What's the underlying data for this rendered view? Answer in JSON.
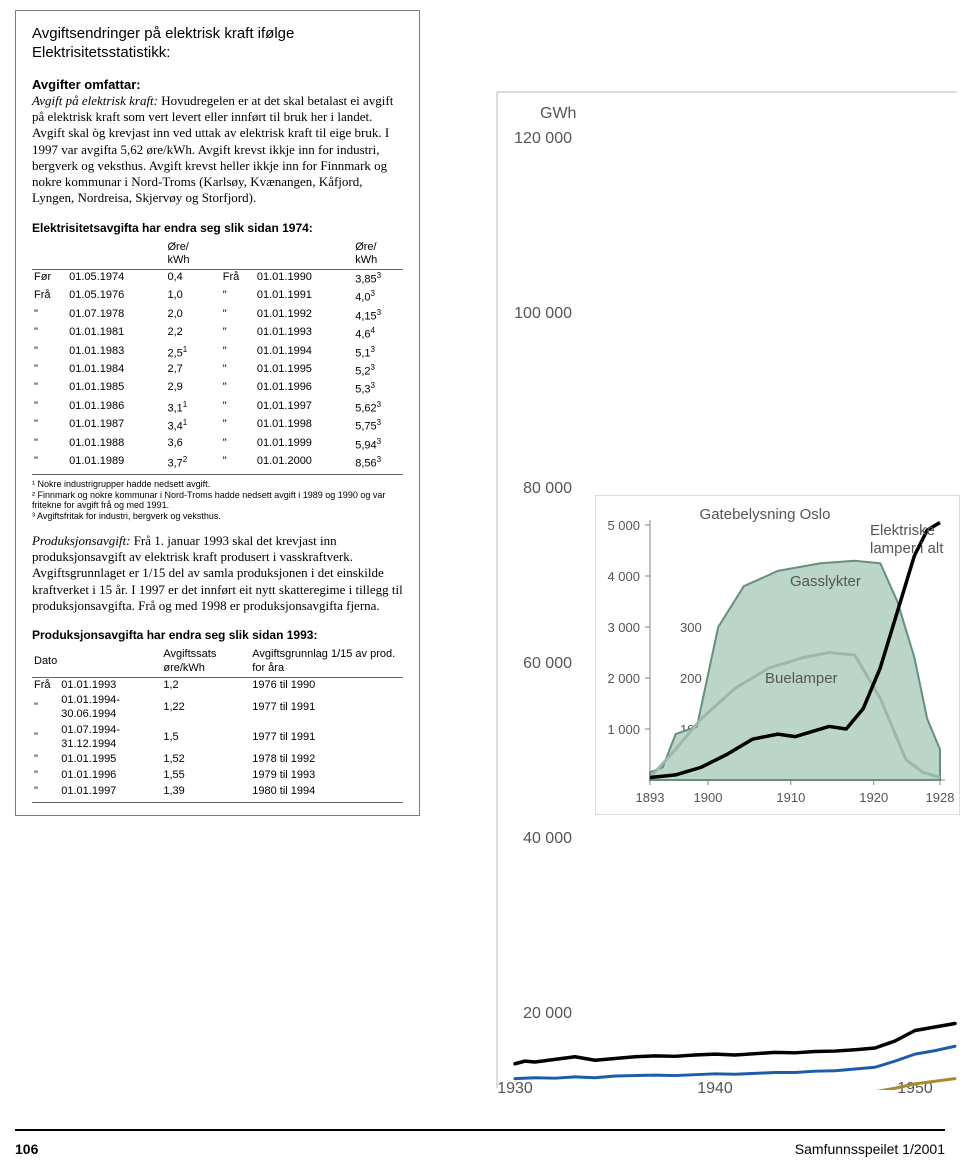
{
  "box": {
    "title": "Avgiftsendringer på elektrisk kraft ifølge Elektrisitetsstatistikk:",
    "section1_head": "Avgifter omfattar:",
    "section1_lead": "Avgift på elektrisk kraft:",
    "section1_body": "Hovudregelen er at det skal betalast ei avgift på elektrisk kraft som vert levert eller innført til bruk her i landet. Avgift skal òg krevjast inn ved uttak av elektrisk kraft til eige bruk. I 1997 var avgifta 5,62 øre/kWh. Avgift krevst ikkje inn for industri, bergverk og veksthus. Avgift krevst heller ikkje inn for Finnmark og nokre kommunar i Nord-Troms (Karlsøy, Kvænangen, Kåfjord, Lyngen, Nordreisa, Skjervøy og Storfjord).",
    "sub1": "Elektrisitetsavgifta har endra seg slik sidan 1974:",
    "tariff_unit": "Øre/\nkWh",
    "tariff_left": [
      [
        "Før",
        "01.05.1974",
        "0,4",
        ""
      ],
      [
        "Frå",
        "01.05.1976",
        "1,0",
        ""
      ],
      [
        "\"",
        "01.07.1978",
        "2,0",
        ""
      ],
      [
        "\"",
        "01.01.1981",
        "2,2",
        ""
      ],
      [
        "\"",
        "01.01.1983",
        "2,5",
        "1"
      ],
      [
        "\"",
        "01.01.1984",
        "2,7",
        ""
      ],
      [
        "\"",
        "01.01.1985",
        "2,9",
        ""
      ],
      [
        "\"",
        "01.01.1986",
        "3,1",
        "1"
      ],
      [
        "\"",
        "01.01.1987",
        "3,4",
        "1"
      ],
      [
        "\"",
        "01.01.1988",
        "3,6",
        ""
      ],
      [
        "\"",
        "01.01.1989",
        "3,7",
        "2"
      ]
    ],
    "tariff_right": [
      [
        "Frå",
        "01.01.1990",
        "3,85",
        "3"
      ],
      [
        "\"",
        "01.01.1991",
        "4,0",
        "3"
      ],
      [
        "\"",
        "01.01.1992",
        "4,15",
        "3"
      ],
      [
        "\"",
        "01.01.1993",
        "4,6",
        "4"
      ],
      [
        "\"",
        "01.01.1994",
        "5,1",
        "3"
      ],
      [
        "\"",
        "01.01.1995",
        "5,2",
        "3"
      ],
      [
        "\"",
        "01.01.1996",
        "5,3",
        "3"
      ],
      [
        "\"",
        "01.01.1997",
        "5,62",
        "3"
      ],
      [
        "\"",
        "01.01.1998",
        "5,75",
        "3"
      ],
      [
        "\"",
        "01.01.1999",
        "5,94",
        "3"
      ],
      [
        "\"",
        "01.01.2000",
        "8,56",
        "3"
      ]
    ],
    "footnotes": [
      "¹ Nokre industrigrupper hadde nedsett avgift.",
      "² Finnmark og nokre kommunar i Nord-Troms hadde nedsett avgift i 1989 og 1990 og var fritekne for avgift frå og med 1991.",
      "³ Avgiftsfritak for industri, bergverk og veksthus."
    ],
    "section2_lead": "Produksjonsavgift:",
    "section2_body": "Frå 1. januar 1993 skal det krevjast inn produksjonsavgift av elektrisk kraft produsert i vasskraftverk. Avgiftsgrunnlaget er 1/15 del av samla produksjonen i det einskilde kraftverket i 15 år. I 1997 er det innført eit nytt skatteregime i tillegg til produksjonsavgifta. Frå og med 1998 er produksjonsavgifta fjerna.",
    "sub2": "Produksjonsavgifta har endra seg slik sidan 1993:",
    "prod_headers": [
      "Dato",
      "Avgiftssats øre/kWh",
      "Avgiftsgrunnlag 1/15 av prod. for åra"
    ],
    "prod_rows": [
      [
        "Frå",
        "01.01.1993",
        "1,2",
        "1976 til 1990"
      ],
      [
        "\"",
        "01.01.1994-30.06.1994",
        "1,22",
        "1977 til 1991"
      ],
      [
        "\"",
        "01.07.1994-31.12.1994",
        "1,5",
        "1977 til 1991"
      ],
      [
        "\"",
        "01.01.1995",
        "1,52",
        "1978 til 1992"
      ],
      [
        "\"",
        "01.01.1996",
        "1,55",
        "1979 til 1993"
      ],
      [
        "\"",
        "01.01.1997",
        "1,39",
        "1980 til 1994"
      ]
    ]
  },
  "main_chart": {
    "unit": "GWh",
    "y_ticks": [
      "120 000",
      "100 000",
      "80 000",
      "60 000",
      "40 000",
      "20 000"
    ],
    "x_ticks": [
      "1930",
      "1940",
      "1950"
    ],
    "colors": {
      "black_line": "#000000",
      "blue_line": "#1c5da8",
      "gold_line": "#a68a2d",
      "axis": "#808080"
    },
    "series_black": [
      [
        0,
        14200
      ],
      [
        10,
        14500
      ],
      [
        20,
        14400
      ],
      [
        40,
        14700
      ],
      [
        60,
        15000
      ],
      [
        80,
        14600
      ],
      [
        100,
        14800
      ],
      [
        120,
        15000
      ],
      [
        140,
        15100
      ],
      [
        160,
        15050
      ],
      [
        180,
        15200
      ],
      [
        200,
        15300
      ],
      [
        220,
        15200
      ],
      [
        240,
        15350
      ],
      [
        260,
        15500
      ],
      [
        280,
        15450
      ],
      [
        300,
        15600
      ],
      [
        320,
        15650
      ],
      [
        340,
        15800
      ],
      [
        360,
        16000
      ],
      [
        380,
        16800
      ],
      [
        400,
        18000
      ],
      [
        420,
        18400
      ],
      [
        440,
        18800
      ]
    ],
    "series_blue": [
      [
        0,
        12500
      ],
      [
        20,
        12600
      ],
      [
        40,
        12550
      ],
      [
        60,
        12700
      ],
      [
        80,
        12600
      ],
      [
        100,
        12800
      ],
      [
        120,
        12850
      ],
      [
        140,
        12900
      ],
      [
        160,
        12850
      ],
      [
        180,
        12950
      ],
      [
        200,
        13050
      ],
      [
        220,
        13000
      ],
      [
        240,
        13100
      ],
      [
        260,
        13200
      ],
      [
        280,
        13200
      ],
      [
        300,
        13350
      ],
      [
        320,
        13400
      ],
      [
        340,
        13600
      ],
      [
        360,
        13800
      ],
      [
        380,
        14500
      ],
      [
        400,
        15300
      ],
      [
        420,
        15700
      ],
      [
        440,
        16200
      ]
    ],
    "series_gold": [
      [
        0,
        10300
      ],
      [
        20,
        10350
      ],
      [
        40,
        10320
      ],
      [
        60,
        10400
      ],
      [
        80,
        10380
      ],
      [
        100,
        10450
      ],
      [
        120,
        10500
      ],
      [
        140,
        10520
      ],
      [
        160,
        10500
      ],
      [
        180,
        10550
      ],
      [
        200,
        10600
      ],
      [
        220,
        10580
      ],
      [
        240,
        10620
      ],
      [
        260,
        10680
      ],
      [
        280,
        10700
      ],
      [
        300,
        10750
      ],
      [
        320,
        10800
      ],
      [
        340,
        10900
      ],
      [
        360,
        11000
      ],
      [
        380,
        11400
      ],
      [
        400,
        11900
      ],
      [
        420,
        12200
      ],
      [
        440,
        12500
      ]
    ]
  },
  "inset": {
    "title": "Gatebelysning Oslo",
    "right_label": "Elektriske lamper i alt",
    "gasslykter_label": "Gasslykter",
    "buelamper_label": "Buelamper",
    "left_ticks": [
      "5 000",
      "4 000",
      "3 000",
      "2 000",
      "1 000"
    ],
    "right_ticks": [
      "300",
      "200",
      "100"
    ],
    "x_ticks": [
      "1893",
      "1900",
      "1910",
      "1920",
      "1928"
    ],
    "colors": {
      "fill": "#bcd5c9",
      "outline": "#668f7f",
      "buelamper": "#9db8ab",
      "elektriske": "#000000",
      "axis": "#808080"
    },
    "gass_area": [
      [
        0,
        150
      ],
      [
        15,
        250
      ],
      [
        30,
        900
      ],
      [
        55,
        1050
      ],
      [
        80,
        3000
      ],
      [
        110,
        3800
      ],
      [
        150,
        4100
      ],
      [
        200,
        4250
      ],
      [
        240,
        4300
      ],
      [
        270,
        4250
      ],
      [
        290,
        3500
      ],
      [
        310,
        2400
      ],
      [
        325,
        1200
      ],
      [
        340,
        600
      ]
    ],
    "buelamper": [
      [
        0,
        5
      ],
      [
        30,
        60
      ],
      [
        60,
        120
      ],
      [
        100,
        180
      ],
      [
        140,
        220
      ],
      [
        180,
        240
      ],
      [
        210,
        250
      ],
      [
        240,
        245
      ],
      [
        270,
        160
      ],
      [
        300,
        40
      ],
      [
        320,
        15
      ],
      [
        340,
        5
      ]
    ],
    "elektriske": [
      [
        0,
        50
      ],
      [
        30,
        100
      ],
      [
        60,
        250
      ],
      [
        90,
        500
      ],
      [
        120,
        800
      ],
      [
        150,
        900
      ],
      [
        170,
        850
      ],
      [
        190,
        950
      ],
      [
        210,
        1050
      ],
      [
        230,
        1000
      ],
      [
        250,
        1400
      ],
      [
        270,
        2200
      ],
      [
        290,
        3300
      ],
      [
        310,
        4400
      ],
      [
        325,
        4900
      ],
      [
        340,
        5050
      ]
    ]
  },
  "footer": {
    "page": "106",
    "pub": "Samfunnsspeilet 1/2001"
  }
}
